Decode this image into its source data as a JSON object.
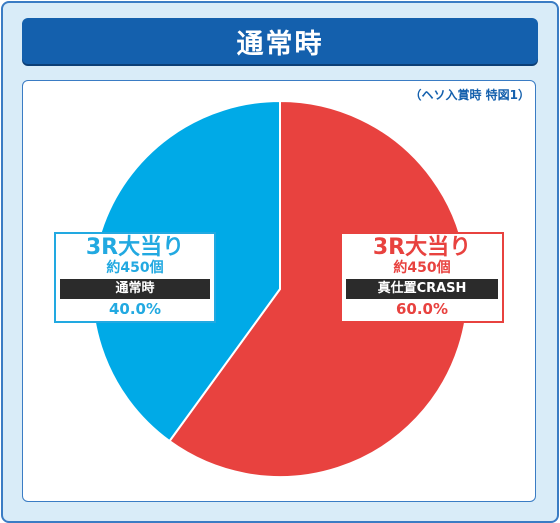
{
  "header": {
    "title": "通常時"
  },
  "note": "（ヘソ入賞時 特図1）",
  "colors": {
    "slice_a": "#e8423f",
    "slice_b": "#00aae7",
    "header_bg": "#1460ad"
  },
  "chart_data": {
    "type": "pie",
    "title": "通常時",
    "slices": [
      {
        "label": "3R大当り",
        "count": "約450個",
        "mode": "真仕置CRASH",
        "value": 60.0,
        "value_label": "60.0%",
        "color": "#e8423f"
      },
      {
        "label": "3R大当り",
        "count": "約450個",
        "mode": "通常時",
        "value": 40.0,
        "value_label": "40.0%",
        "color": "#00aae7"
      }
    ]
  }
}
